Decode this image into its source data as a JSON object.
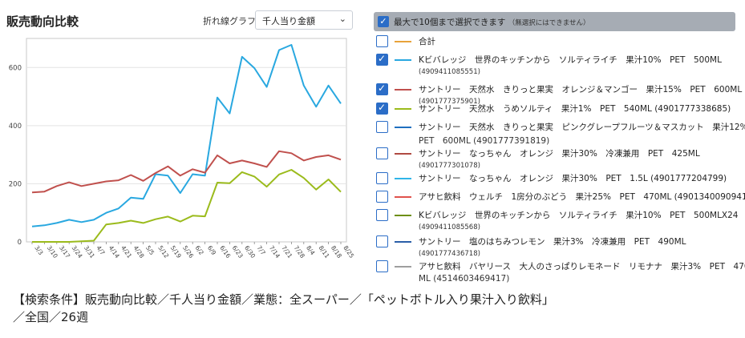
{
  "header": {
    "title": "販売動向比較",
    "chart_type_label": "折れ線グラフ",
    "metric_select_value": "千人当り金額"
  },
  "legend": {
    "header_text": "最大で10個まで選択できます",
    "header_note": "（無選択にはできません）",
    "items": [
      {
        "color": "#e8a33a",
        "checked": false,
        "line1": "合計",
        "line2": ""
      },
      {
        "color": "#29a8e0",
        "checked": true,
        "line1": "Kビバレッジ　世界のキッチンから　ソルティライチ　果汁10%　PET　500ML",
        "line2": "(4909411085551)"
      },
      {
        "color": "#c0504d",
        "checked": true,
        "line1": "サントリー　天然水　きりっと果実　オレンジ＆マンゴー　果汁15%　PET　600ML",
        "line2": "(4901777375901)"
      },
      {
        "color": "#9bbb1c",
        "checked": true,
        "line1": "サントリー　天然水　うめソルティ　果汁1%　PET　540ML (4901777338685)",
        "line2": ""
      },
      {
        "color": "#1f6fbf",
        "checked": false,
        "line1": "サントリー　天然水　きりっと果実　ピンクグレープフルーツ＆マスカット　果汁12%",
        "line2": "PET　600ML (4901777391819)",
        "line2big": true
      },
      {
        "color": "#b04a42",
        "checked": false,
        "line1": "サントリー　なっちゃん　オレンジ　果汁30%　冷凍兼用　PET　425ML",
        "line2": "(4901777301078)"
      },
      {
        "color": "#2fb5e8",
        "checked": false,
        "line1": "サントリー　なっちゃん　オレンジ　果汁30%　PET　1.5L (4901777204799)",
        "line2": ""
      },
      {
        "color": "#e0524c",
        "checked": false,
        "line1": "アサヒ飲料　ウェルチ　1房分のぶどう　果汁25%　PET　470ML (4901340090941)",
        "line2": ""
      },
      {
        "color": "#6e8f12",
        "checked": false,
        "line1": "Kビバレッジ　世界のキッチンから　ソルティライチ　果汁10%　PET　500MLX24",
        "line2": "(4909411085568)"
      },
      {
        "color": "#2a5fa8",
        "checked": false,
        "line1": "サントリー　塩のはちみつレモン　果汁3%　冷凍兼用　PET　490ML",
        "line2": "(4901777436718)"
      },
      {
        "color": "#9e9e9e",
        "checked": false,
        "line1": "アサヒ飲料　バヤリース　大人のさっぱりレモネード　リモナナ　果汁3%　PET　470",
        "line2": "ML (4514603469417)",
        "line2big": true
      }
    ]
  },
  "criteria": {
    "line1": "【検索条件】販売動向比較／千人当り金額／業態：全スーパー／「ペットボトル入り果汁入り飲料」",
    "line2": "／全国／26週"
  },
  "chart_data": {
    "type": "line",
    "title": "",
    "xlabel": "",
    "ylabel": "",
    "ylim": [
      0,
      700
    ],
    "yticks": [
      0,
      200,
      400,
      600
    ],
    "grid": true,
    "categories": [
      "3/3",
      "3/10",
      "3/17",
      "3/24",
      "3/31",
      "4/7",
      "4/14",
      "4/21",
      "4/28",
      "5/5",
      "5/12",
      "5/19",
      "5/26",
      "6/2",
      "6/9",
      "6/16",
      "6/23",
      "6/30",
      "7/7",
      "7/14",
      "7/21",
      "7/28",
      "8/4",
      "8/11",
      "8/18",
      "8/25"
    ],
    "series": [
      {
        "color": "#29a8e0",
        "values": [
          53,
          57,
          65,
          76,
          68,
          76,
          100,
          115,
          152,
          148,
          233,
          228,
          168,
          233,
          228,
          497,
          442,
          637,
          598,
          533,
          660,
          678,
          538,
          465,
          538,
          476
        ]
      },
      {
        "color": "#c0504d",
        "values": [
          170,
          173,
          192,
          205,
          192,
          200,
          208,
          212,
          230,
          210,
          237,
          260,
          228,
          250,
          238,
          298,
          270,
          280,
          270,
          258,
          312,
          305,
          280,
          292,
          298,
          283
        ]
      },
      {
        "color": "#9bbb1c",
        "values": [
          0,
          0,
          0,
          0,
          2,
          4,
          60,
          65,
          73,
          65,
          78,
          87,
          70,
          90,
          88,
          204,
          202,
          240,
          225,
          190,
          232,
          248,
          220,
          180,
          215,
          172
        ]
      }
    ]
  }
}
